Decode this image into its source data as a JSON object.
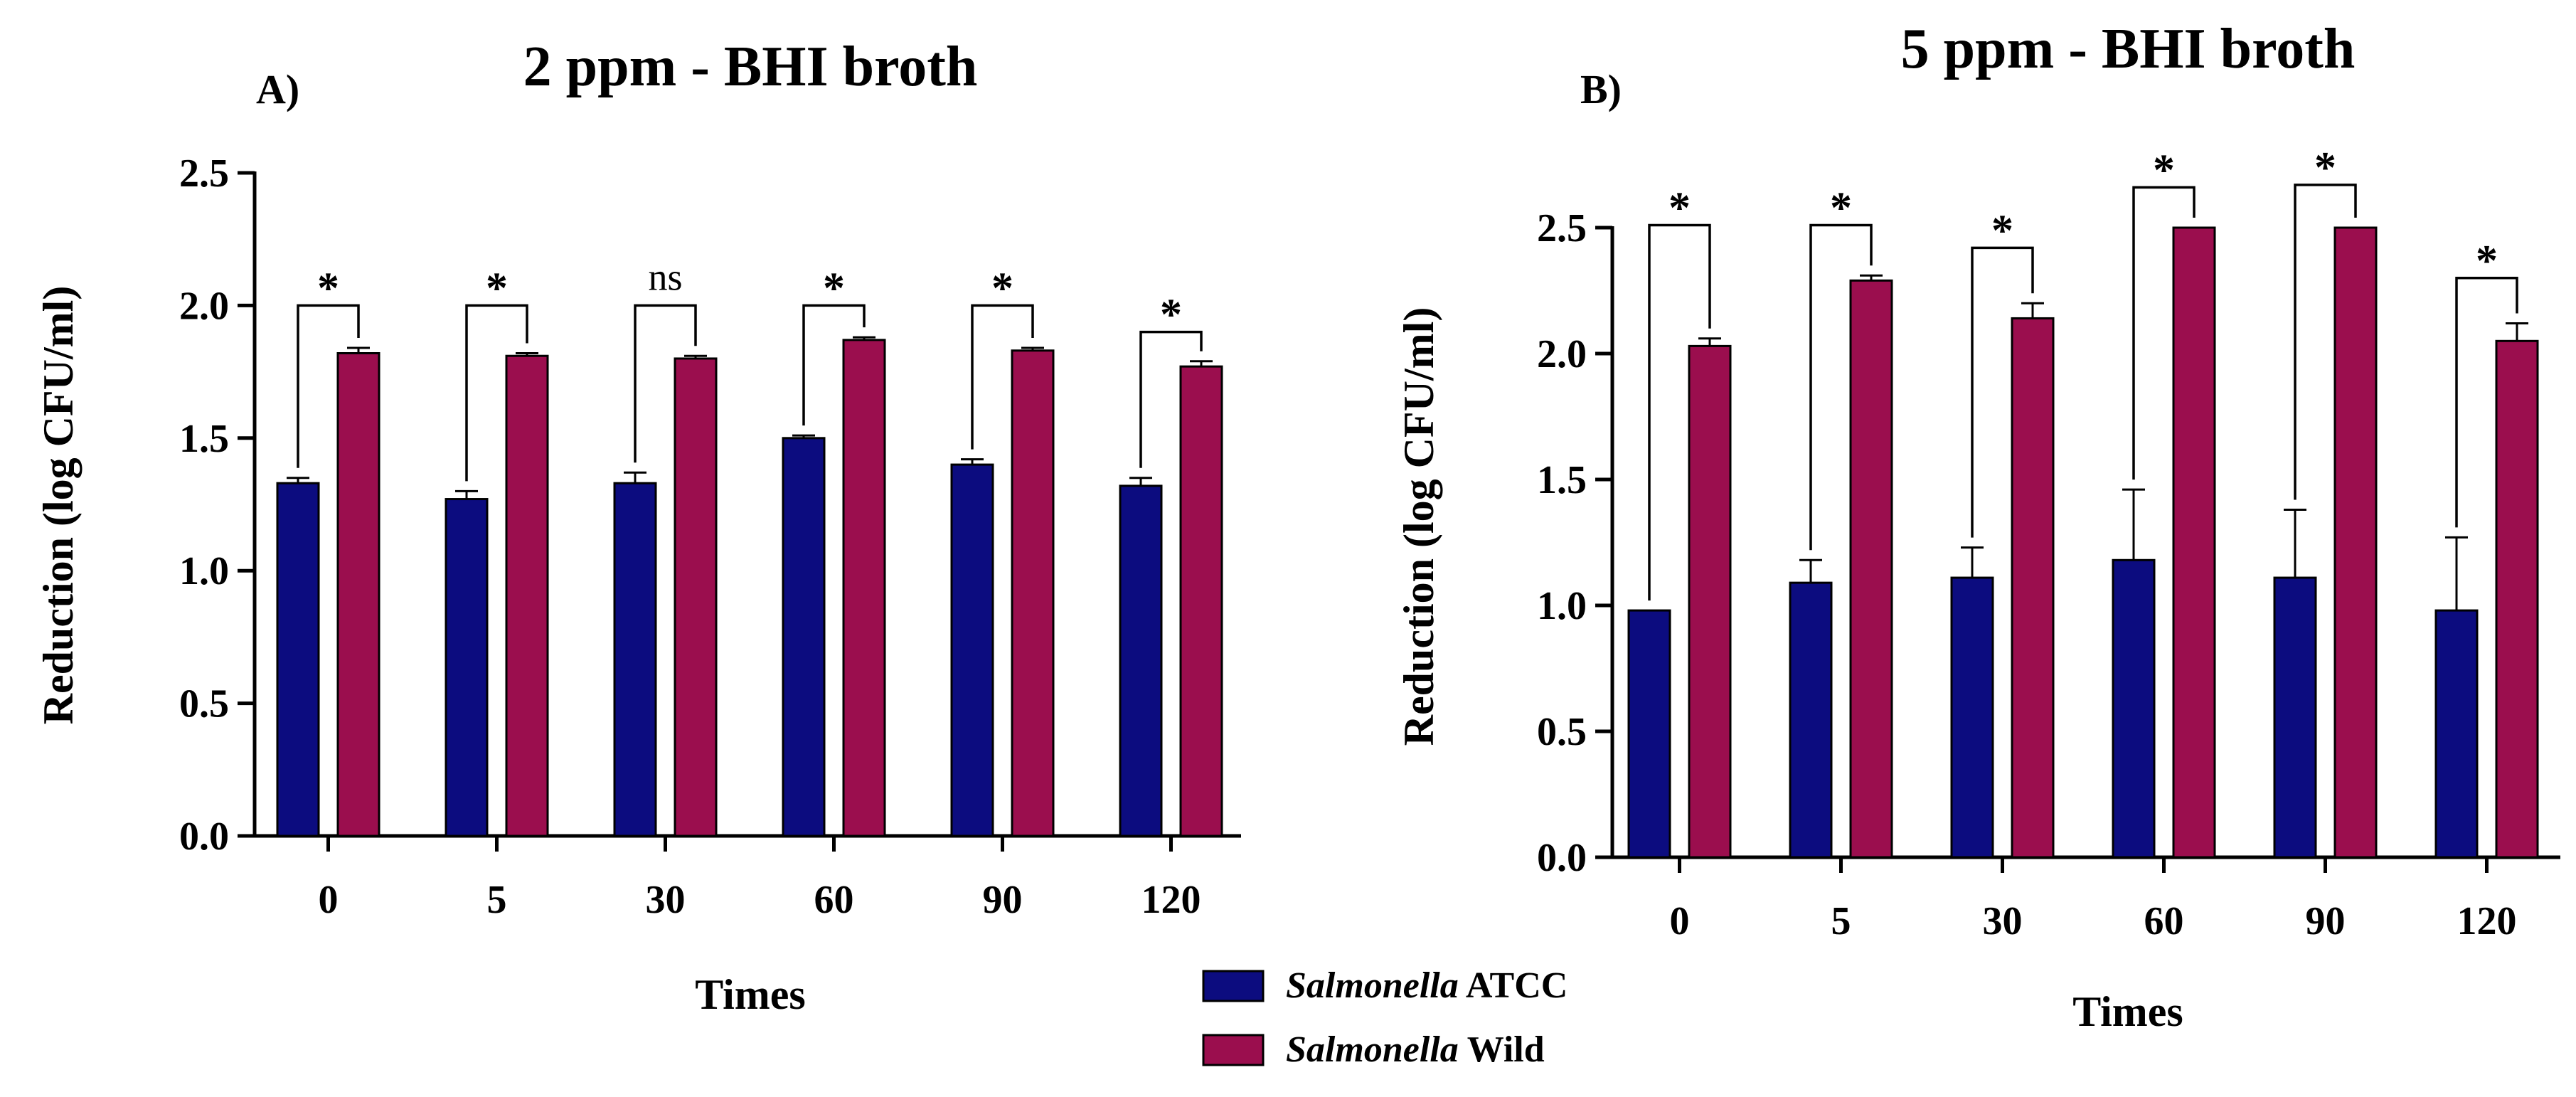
{
  "chart_data": [
    {
      "type": "bar",
      "panel_label": "A)",
      "title": "2 ppm - BHI broth",
      "xlabel": "Times",
      "ylabel": "Reduction (log CFU/ml)",
      "ylim": [
        0,
        2.5
      ],
      "yticks": [
        "0.0",
        "0.5",
        "1.0",
        "1.5",
        "2.0",
        "2.5"
      ],
      "categories": [
        "0",
        "5",
        "30",
        "60",
        "90",
        "120"
      ],
      "series": [
        {
          "name": "Salmonella ATCC",
          "values": [
            1.33,
            1.27,
            1.33,
            1.5,
            1.4,
            1.32
          ],
          "errors": [
            0.02,
            0.03,
            0.04,
            0.01,
            0.02,
            0.03
          ]
        },
        {
          "name": "Salmonella Wild",
          "values": [
            1.82,
            1.81,
            1.8,
            1.87,
            1.83,
            1.77
          ],
          "errors": [
            0.02,
            0.01,
            0.01,
            0.01,
            0.01,
            0.02
          ]
        }
      ],
      "significance": [
        "*",
        "*",
        "ns",
        "*",
        "*",
        "*"
      ],
      "bracket_levels": [
        2.0,
        2.0,
        2.0,
        2.0,
        2.0,
        1.9
      ]
    },
    {
      "type": "bar",
      "panel_label": "B)",
      "title": "5 ppm - BHI broth",
      "xlabel": "Times",
      "ylabel": "Reduction (log CFU/ml)",
      "ylim": [
        0,
        2.5
      ],
      "yticks": [
        "0.0",
        "0.5",
        "1.0",
        "1.5",
        "2.0",
        "2.5"
      ],
      "categories": [
        "0",
        "5",
        "30",
        "60",
        "90",
        "120"
      ],
      "series": [
        {
          "name": "Salmonella ATCC",
          "values": [
            0.98,
            1.09,
            1.11,
            1.18,
            1.11,
            0.98
          ],
          "errors": [
            0,
            0.09,
            0.12,
            0.28,
            0.27,
            0.29
          ]
        },
        {
          "name": "Salmonella Wild",
          "values": [
            2.03,
            2.29,
            2.14,
            2.5,
            2.5,
            2.05
          ],
          "errors": [
            0.03,
            0.02,
            0.06,
            0,
            0,
            0.07
          ]
        }
      ],
      "significance": [
        "*",
        "*",
        "*",
        "*",
        "*",
        "*"
      ],
      "bracket_levels": [
        2.51,
        2.51,
        2.42,
        2.66,
        2.67,
        2.3
      ]
    }
  ],
  "legend": {
    "items": [
      {
        "italic": "Salmonella",
        "rest": "ATCC",
        "color": "#0c0c7f"
      },
      {
        "italic": "Salmonella",
        "rest": "Wild",
        "color": "#9b0e4e"
      }
    ]
  },
  "colors": {
    "atcc": "#0c0c7f",
    "wild": "#9b0e4e"
  }
}
